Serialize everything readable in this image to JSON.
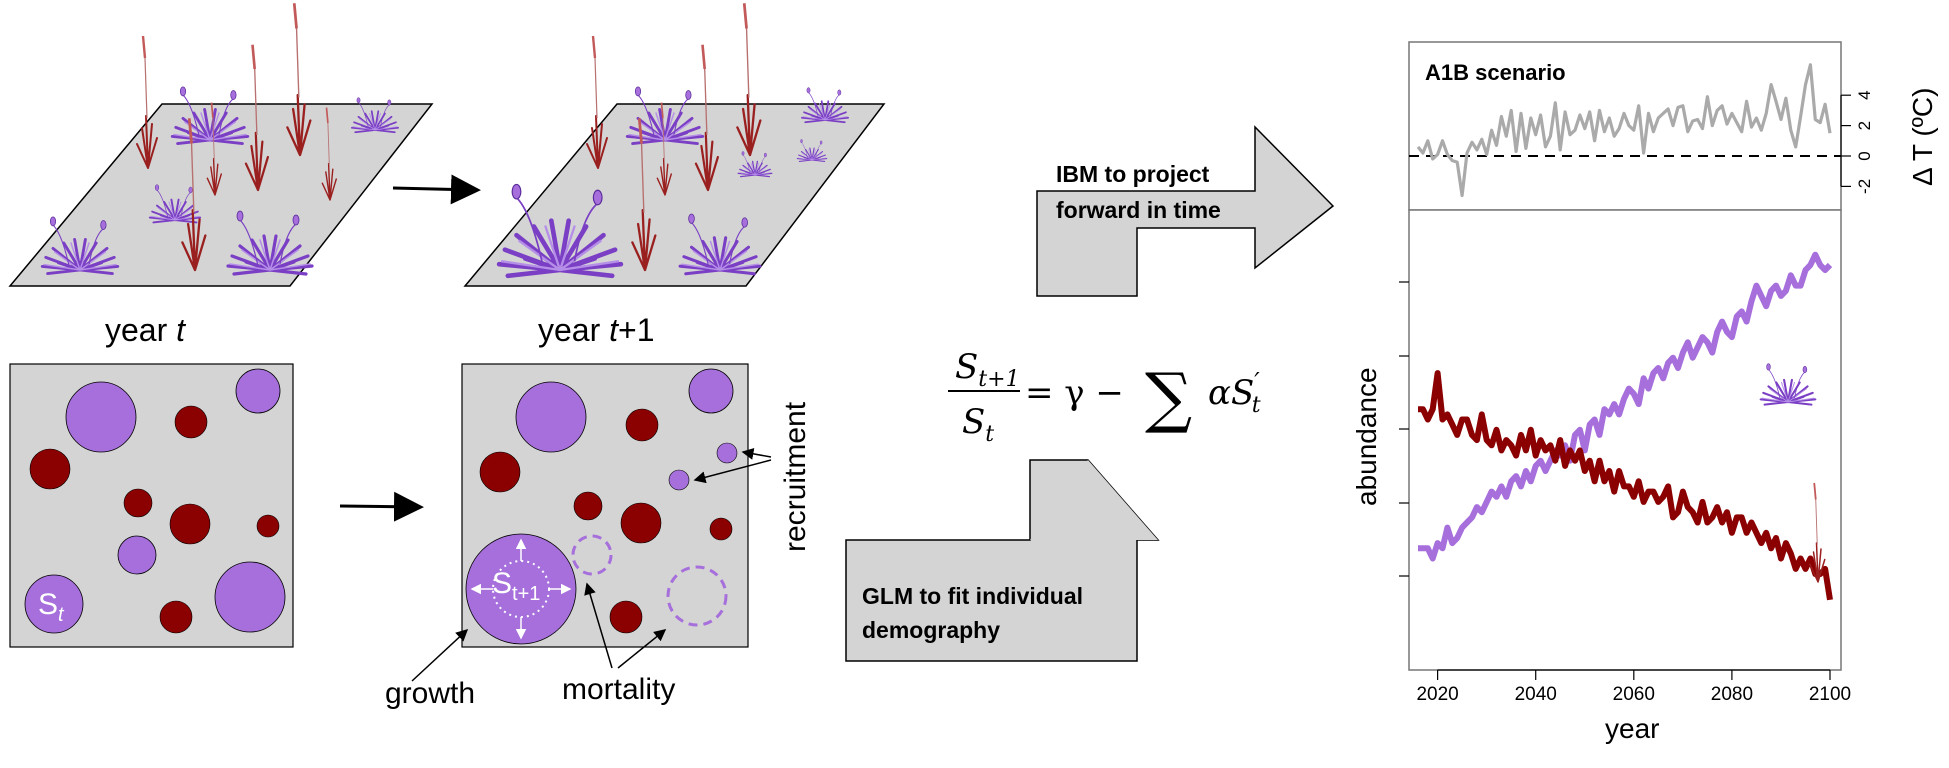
{
  "panels": {
    "year_left": "year ",
    "year_left_var": "t",
    "year_right": "year ",
    "year_right_var": "t",
    "year_right_suffix": "+1",
    "st_label": "S",
    "st_sub": "t",
    "st1_label": "S",
    "st1_sub": "t+1",
    "growth": "growth",
    "mortality": "mortality",
    "recruitment": "recruitment"
  },
  "arrows": {
    "ibm_line1": "IBM to project",
    "ibm_line2": "forward in time",
    "glm_line1": "GLM to fit individual",
    "glm_line2": "demography"
  },
  "equation": {
    "numerator": "S",
    "numerator_sub": "t+1",
    "denominator": "S",
    "denominator_sub": "t",
    "rhs": "= γ −",
    "sum": "∑",
    "term": "αS",
    "term_prime": "′",
    "term_sub": "t"
  },
  "colors": {
    "purple": "#a66fdc",
    "darkred": "#8b0000",
    "grey_panel": "#d4d4d4",
    "temp_line": "#aaaaaa",
    "forb_line": "#a66fdc",
    "grass_line": "#8b0000"
  },
  "chart_data": [
    {
      "type": "line",
      "title": "A1B scenario",
      "ylabel": "Δ T (ºC)",
      "yticks": [
        "-2",
        "0",
        "2",
        "4"
      ],
      "ylim": [
        -3,
        6
      ],
      "x": [
        2016,
        2017,
        2018,
        2019,
        2020,
        2021,
        2022,
        2023,
        2024,
        2025,
        2026,
        2027,
        2028,
        2029,
        2030,
        2031,
        2032,
        2033,
        2034,
        2035,
        2036,
        2037,
        2038,
        2039,
        2040,
        2041,
        2042,
        2043,
        2044,
        2045,
        2046,
        2047,
        2048,
        2049,
        2050,
        2051,
        2052,
        2053,
        2054,
        2055,
        2056,
        2057,
        2058,
        2059,
        2060,
        2061,
        2062,
        2063,
        2064,
        2065,
        2066,
        2067,
        2068,
        2069,
        2070,
        2071,
        2072,
        2073,
        2074,
        2075,
        2076,
        2077,
        2078,
        2079,
        2080,
        2081,
        2082,
        2083,
        2084,
        2085,
        2086,
        2087,
        2088,
        2089,
        2090,
        2091,
        2092,
        2093,
        2094,
        2095,
        2096,
        2097,
        2098,
        2099,
        2100
      ],
      "series": [
        {
          "values": [
            0.6,
            0.2,
            1.0,
            -0.2,
            0.1,
            1.0,
            0.1,
            -0.3,
            -0.4,
            -2.6,
            0.2,
            0.9,
            0.4,
            1.1,
            0.1,
            1.7,
            0.7,
            2.6,
            1.3,
            3.0,
            0.3,
            2.8,
            0.5,
            2.5,
            1.4,
            2.7,
            0.6,
            1.3,
            3.5,
            0.4,
            2.9,
            1.4,
            1.7,
            2.7,
            1.8,
            2.9,
            1.0,
            3.0,
            1.6,
            2.5,
            1.3,
            1.8,
            2.8,
            2.0,
            1.7,
            3.3,
            0.2,
            2.8,
            1.6,
            2.5,
            2.8,
            3.1,
            2.0,
            3.2,
            3.3,
            1.6,
            2.3,
            2.4,
            1.8,
            3.9,
            2.0,
            3.0,
            3.3,
            2.1,
            2.8,
            2.2,
            1.6,
            3.6,
            1.9,
            2.5,
            1.7,
            2.8,
            4.7,
            3.6,
            2.4,
            3.8,
            1.7,
            0.6,
            2.6,
            4.7,
            6.0,
            2.4,
            2.2,
            3.4,
            1.5
          ]
        }
      ]
    },
    {
      "type": "line",
      "xlabel": "year",
      "ylabel": "abundance",
      "xticks": [
        "2020",
        "2040",
        "2060",
        "2080",
        "2100"
      ],
      "xlim": [
        2016,
        2100
      ],
      "series": [
        {
          "name": "",
          "color": "purple",
          "values": [
            0.5,
            0.5,
            0.5,
            0.3,
            0.6,
            0.5,
            0.9,
            0.6,
            0.7,
            0.9,
            1.0,
            1.1,
            1.3,
            1.2,
            1.4,
            1.6,
            1.5,
            1.7,
            1.5,
            1.8,
            1.9,
            1.7,
            2.0,
            1.8,
            2.1,
            2.2,
            2.0,
            2.2,
            2.4,
            2.3,
            2.5,
            2.2,
            2.7,
            2.8,
            2.4,
            2.9,
            3.0,
            2.7,
            3.2,
            3.1,
            3.3,
            3.1,
            3.4,
            3.6,
            3.5,
            3.3,
            3.8,
            3.6,
            3.9,
            4.0,
            3.8,
            4.1,
            4.2,
            4.0,
            4.3,
            4.5,
            4.2,
            4.4,
            4.6,
            4.5,
            4.3,
            4.7,
            4.9,
            4.7,
            4.6,
            5.0,
            5.1,
            4.9,
            5.3,
            5.6,
            5.4,
            5.2,
            5.5,
            5.6,
            5.4,
            5.5,
            5.8,
            5.6,
            5.6,
            5.9,
            6.0,
            6.2,
            6.0,
            5.9,
            6.0
          ]
        },
        {
          "name": "",
          "color": "darkred",
          "values": [
            3.2,
            3.2,
            3.0,
            3.2,
            3.9,
            3.0,
            3.1,
            2.9,
            2.7,
            3.0,
            3.0,
            2.7,
            2.6,
            3.1,
            2.6,
            2.5,
            2.8,
            2.4,
            2.6,
            2.5,
            2.3,
            2.7,
            2.4,
            2.8,
            2.3,
            2.6,
            2.4,
            2.5,
            2.2,
            2.6,
            2.1,
            2.4,
            2.2,
            2.4,
            2.0,
            2.2,
            1.8,
            2.2,
            1.8,
            2.0,
            1.6,
            2.0,
            1.7,
            1.7,
            1.5,
            1.8,
            1.4,
            1.6,
            1.6,
            1.4,
            1.5,
            1.7,
            1.1,
            1.2,
            1.6,
            1.3,
            1.2,
            1.0,
            1.4,
            1.0,
            1.1,
            1.3,
            1.0,
            1.2,
            0.8,
            1.1,
            1.1,
            0.8,
            1.0,
            0.8,
            0.6,
            0.8,
            0.5,
            0.7,
            0.3,
            0.6,
            0.4,
            0.1,
            0.3,
            0.1,
            0.3,
            0.0,
            0.0,
            0.1,
            -0.5
          ]
        }
      ]
    }
  ]
}
